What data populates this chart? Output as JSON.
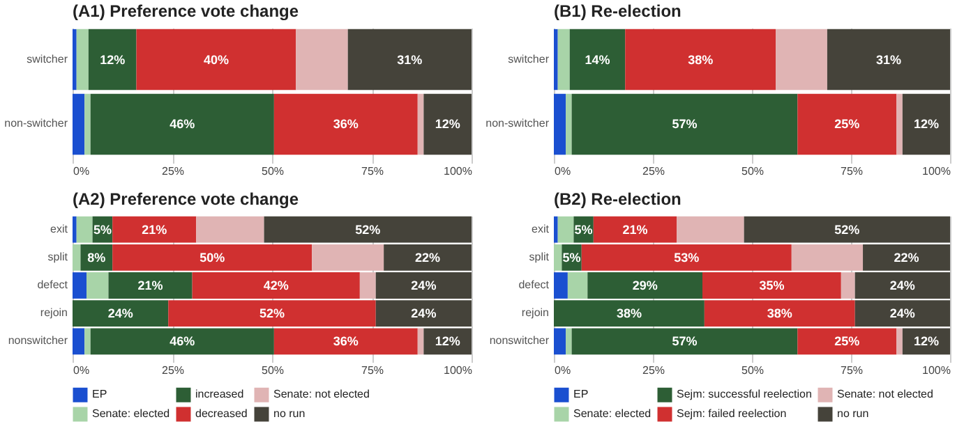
{
  "chart_data": [
    {
      "type": "bar",
      "orientation": "horizontal",
      "stacked": true,
      "title": "(A1) Preference vote change",
      "categories": [
        "switcher",
        "non-switcher"
      ],
      "xlim": [
        0,
        100
      ],
      "xticks": [
        {
          "value": 0,
          "label": "0%"
        },
        {
          "value": 25,
          "label": "25%"
        },
        {
          "value": 50,
          "label": "50%"
        },
        {
          "value": 75,
          "label": "75%"
        },
        {
          "value": 100,
          "label": "100%"
        }
      ],
      "grid": "x",
      "legend": "bottom",
      "series": [
        {
          "name": "EP",
          "color": "#1a4fd0",
          "values": [
            1,
            3
          ]
        },
        {
          "name": "Senate: elected",
          "color": "#a8d4a8",
          "values": [
            3,
            1.5
          ]
        },
        {
          "name": "increased",
          "color": "#2d5e35",
          "values": [
            12,
            46
          ],
          "value_labels": [
            "12%",
            "46%"
          ]
        },
        {
          "name": "decreased",
          "color": "#d03030",
          "values": [
            40,
            36
          ],
          "value_labels": [
            "40%",
            "36%"
          ]
        },
        {
          "name": "Senate: not elected",
          "color": "#e0b4b4",
          "values": [
            13,
            1.5
          ]
        },
        {
          "name": "no run",
          "color": "#45433a",
          "values": [
            31,
            12
          ],
          "value_labels": [
            "31%",
            "12%"
          ]
        }
      ]
    },
    {
      "type": "bar",
      "orientation": "horizontal",
      "stacked": true,
      "title": "(B1) Re-election",
      "categories": [
        "switcher",
        "non-switcher"
      ],
      "xlim": [
        0,
        100
      ],
      "xticks": [
        {
          "value": 0,
          "label": "0%"
        },
        {
          "value": 25,
          "label": "25%"
        },
        {
          "value": 50,
          "label": "50%"
        },
        {
          "value": 75,
          "label": "75%"
        },
        {
          "value": 100,
          "label": "100%"
        }
      ],
      "grid": "x",
      "legend": "bottom",
      "series": [
        {
          "name": "EP",
          "color": "#1a4fd0",
          "values": [
            1,
            3
          ]
        },
        {
          "name": "Senate: elected",
          "color": "#a8d4a8",
          "values": [
            3,
            1.5
          ]
        },
        {
          "name": "Sejm: successful reelection",
          "color": "#2d5e35",
          "values": [
            14,
            57
          ],
          "value_labels": [
            "14%",
            "57%"
          ]
        },
        {
          "name": "Sejm: failed reelection",
          "color": "#d03030",
          "values": [
            38,
            25
          ],
          "value_labels": [
            "38%",
            "25%"
          ]
        },
        {
          "name": "Senate: not elected",
          "color": "#e0b4b4",
          "values": [
            13,
            1.5
          ]
        },
        {
          "name": "no run",
          "color": "#45433a",
          "values": [
            31,
            12
          ],
          "value_labels": [
            "31%",
            "12%"
          ]
        }
      ]
    },
    {
      "type": "bar",
      "orientation": "horizontal",
      "stacked": true,
      "title": "(A2) Preference vote change",
      "categories": [
        "exit",
        "split",
        "defect",
        "rejoin",
        "nonswitcher"
      ],
      "xlim": [
        0,
        100
      ],
      "xticks": [
        {
          "value": 0,
          "label": "0%"
        },
        {
          "value": 25,
          "label": "25%"
        },
        {
          "value": 50,
          "label": "50%"
        },
        {
          "value": 75,
          "label": "75%"
        },
        {
          "value": 100,
          "label": "100%"
        }
      ],
      "grid": "x",
      "legend": "bottom",
      "series": [
        {
          "name": "EP",
          "color": "#1a4fd0",
          "values": [
            1,
            0,
            3.5,
            0,
            3
          ]
        },
        {
          "name": "Senate: elected",
          "color": "#a8d4a8",
          "values": [
            4,
            2,
            5.5,
            0,
            1.5
          ]
        },
        {
          "name": "increased",
          "color": "#2d5e35",
          "values": [
            5,
            8,
            21,
            24,
            46
          ],
          "value_labels": [
            "5%",
            "8%",
            "21%",
            "24%",
            "46%"
          ]
        },
        {
          "name": "decreased",
          "color": "#d03030",
          "values": [
            21,
            50,
            42,
            52,
            36
          ],
          "value_labels": [
            "21%",
            "50%",
            "42%",
            "52%",
            "36%"
          ]
        },
        {
          "name": "Senate: not elected",
          "color": "#e0b4b4",
          "values": [
            17,
            18,
            4,
            0,
            1.5
          ]
        },
        {
          "name": "no run",
          "color": "#45433a",
          "values": [
            52,
            22,
            24,
            24,
            12
          ],
          "value_labels": [
            "52%",
            "22%",
            "24%",
            "24%",
            "12%"
          ]
        }
      ]
    },
    {
      "type": "bar",
      "orientation": "horizontal",
      "stacked": true,
      "title": "(B2) Re-election",
      "categories": [
        "exit",
        "split",
        "defect",
        "rejoin",
        "nonswitcher"
      ],
      "xlim": [
        0,
        100
      ],
      "xticks": [
        {
          "value": 0,
          "label": "0%"
        },
        {
          "value": 25,
          "label": "25%"
        },
        {
          "value": 50,
          "label": "50%"
        },
        {
          "value": 75,
          "label": "75%"
        },
        {
          "value": 100,
          "label": "100%"
        }
      ],
      "grid": "x",
      "legend": "bottom",
      "series": [
        {
          "name": "EP",
          "color": "#1a4fd0",
          "values": [
            1,
            0,
            3.5,
            0,
            3
          ]
        },
        {
          "name": "Senate: elected",
          "color": "#a8d4a8",
          "values": [
            4,
            2,
            5,
            0,
            1.5
          ]
        },
        {
          "name": "Sejm: successful reelection",
          "color": "#2d5e35",
          "values": [
            5,
            5,
            29,
            38,
            57
          ],
          "value_labels": [
            "5%",
            "5%",
            "29%",
            "38%",
            "57%"
          ]
        },
        {
          "name": "Sejm: failed reelection",
          "color": "#d03030",
          "values": [
            21,
            53,
            35,
            38,
            25
          ],
          "value_labels": [
            "21%",
            "53%",
            "35%",
            "38%",
            "25%"
          ]
        },
        {
          "name": "Senate: not elected",
          "color": "#e0b4b4",
          "values": [
            17,
            18,
            3.5,
            0,
            1.5
          ]
        },
        {
          "name": "no run",
          "color": "#45433a",
          "values": [
            52,
            22,
            24,
            24,
            12
          ],
          "value_labels": [
            "52%",
            "22%",
            "24%",
            "24%",
            "12%"
          ]
        }
      ]
    }
  ]
}
